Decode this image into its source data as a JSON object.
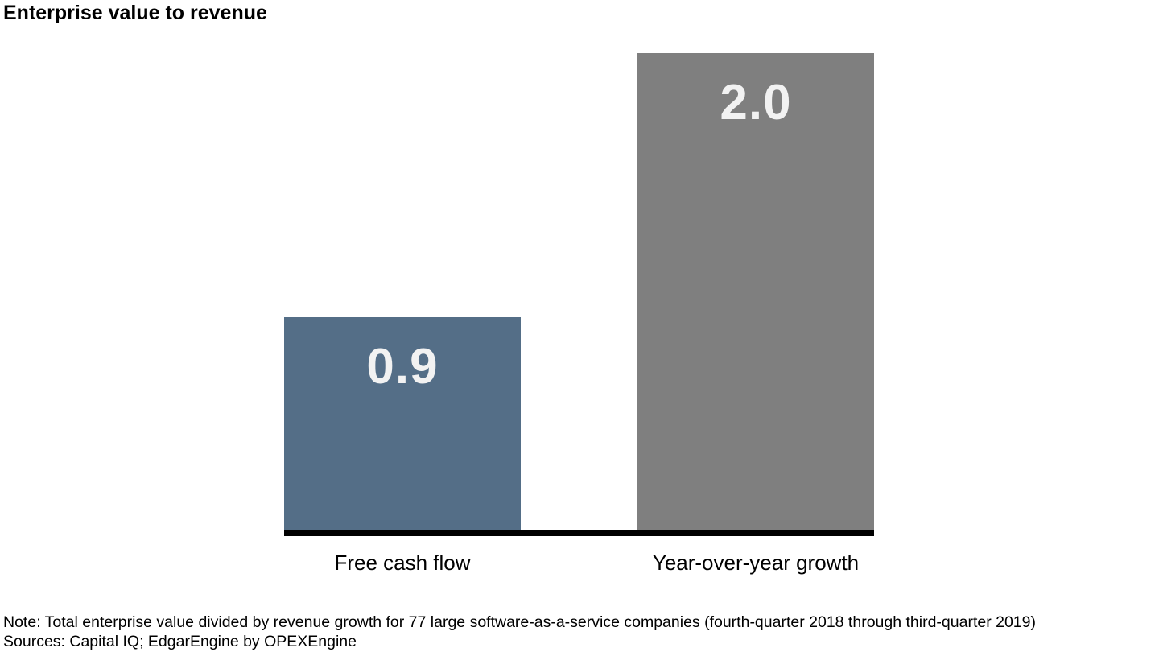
{
  "chart_data": {
    "type": "bar",
    "title": "Enterprise value to revenue",
    "categories": [
      "Free cash flow",
      "Year-over-year growth"
    ],
    "values": [
      0.9,
      2.0
    ],
    "value_labels": [
      "0.9",
      "2.0"
    ],
    "series": [
      {
        "name": "Enterprise value to revenue",
        "values": [
          0.9,
          2.0
        ]
      }
    ],
    "ylim": [
      0,
      2.2
    ],
    "bar_colors": [
      "#546e87",
      "#7f7f7f"
    ],
    "value_label_color": "#f2f2f2",
    "axis_color": "#000000",
    "grid": false,
    "legend": false,
    "xlabel": "",
    "ylabel": ""
  },
  "notes": {
    "note": "Note: Total enterprise value divided by revenue growth for 77 large software-as-a-service companies (fourth-quarter 2018 through third-quarter 2019)",
    "sources": "Sources: Capital IQ; EdgarEngine by OPEXEngine"
  }
}
